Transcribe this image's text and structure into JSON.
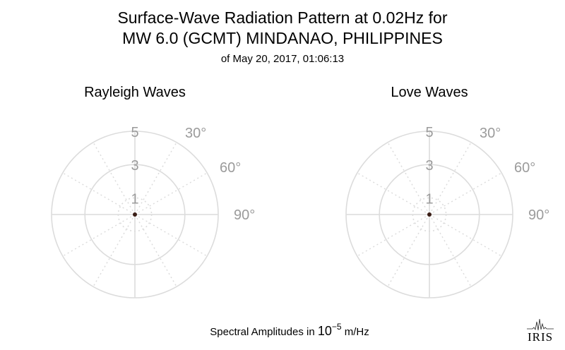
{
  "title_line1": "Surface-Wave Radiation Pattern at 0.02Hz for",
  "title_line2": "MW 6.0 (GCMT) MINDANAO, PHILIPPINES",
  "title_line3": "of May 20, 2017, 01:06:13",
  "footer": {
    "prefix": "Spectral Amplitudes in ",
    "base": "10",
    "exponent": "−5",
    "unit": " m/Hz"
  },
  "logo_text": "IRIS",
  "colors": {
    "grid": "#dcdcdc",
    "tick_label": "#9b9b9b",
    "point": "#3a1e16"
  },
  "chart_data": [
    {
      "type": "polar",
      "title": "Rayleigh Waves",
      "radial_ticks": [
        1,
        3,
        5
      ],
      "radial_range": [
        0,
        5
      ],
      "angular_ticks": [
        "30°",
        "60°",
        "90°"
      ],
      "angular_grid_step_deg": 30,
      "values": [
        0
      ]
    },
    {
      "type": "polar",
      "title": "Love Waves",
      "radial_ticks": [
        1,
        3,
        5
      ],
      "radial_range": [
        0,
        5
      ],
      "angular_ticks": [
        "30°",
        "60°",
        "90°"
      ],
      "angular_grid_step_deg": 30,
      "values": [
        0
      ]
    }
  ]
}
